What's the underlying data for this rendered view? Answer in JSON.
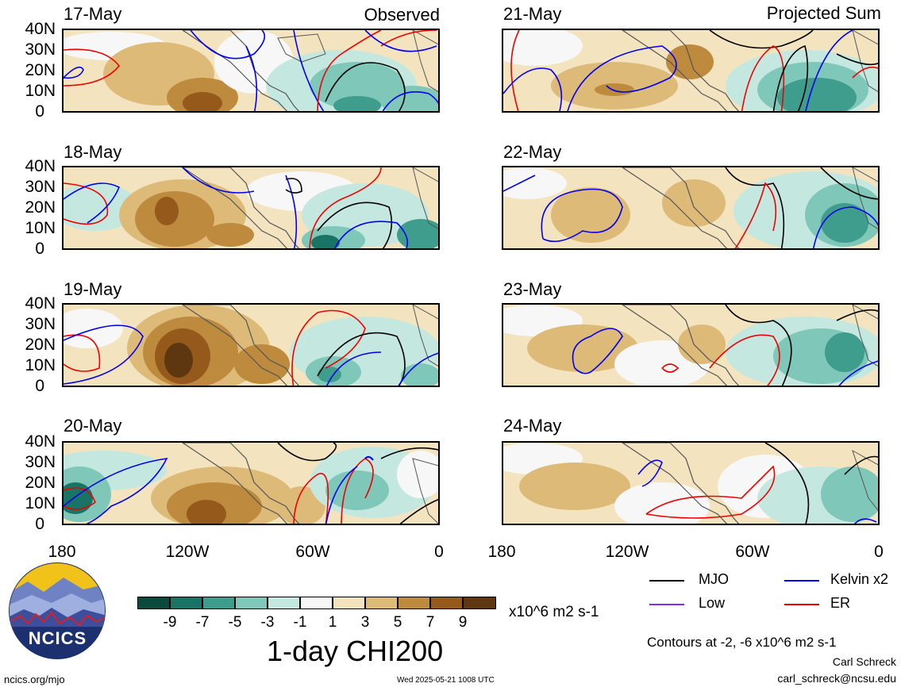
{
  "headers": {
    "left_label": "Observed",
    "right_label": "Projected Sum"
  },
  "panels": [
    {
      "date": "17-May",
      "column": "left",
      "row": 0
    },
    {
      "date": "18-May",
      "column": "left",
      "row": 1
    },
    {
      "date": "19-May",
      "column": "left",
      "row": 2
    },
    {
      "date": "20-May",
      "column": "left",
      "row": 3
    },
    {
      "date": "21-May",
      "column": "right",
      "row": 0
    },
    {
      "date": "22-May",
      "column": "right",
      "row": 1
    },
    {
      "date": "23-May",
      "column": "right",
      "row": 2
    },
    {
      "date": "24-May",
      "column": "right",
      "row": 3
    }
  ],
  "y_ticks": [
    "40N",
    "30N",
    "20N",
    "10N",
    "0"
  ],
  "x_ticks": [
    "180",
    "120W",
    "60W",
    "0"
  ],
  "colorbar": {
    "title": "1-day CHI200",
    "units": "x10^6 m2 s-1",
    "tick_labels": [
      "-9",
      "-7",
      "-5",
      "-3",
      "-1",
      "1",
      "3",
      "5",
      "7",
      "9"
    ],
    "colors": [
      "#0b4a3c",
      "#1a7466",
      "#3f9d8e",
      "#7fc7b9",
      "#c4e8df",
      "#f7f7f7",
      "#f3e4bf",
      "#deba79",
      "#bd8a3e",
      "#94591b",
      "#5e3710"
    ]
  },
  "legend": {
    "items": [
      {
        "label": "MJO",
        "color": "#000000"
      },
      {
        "label": "Kelvin x2",
        "color": "#0000ee"
      },
      {
        "label": "Low",
        "color": "#8a2be2"
      },
      {
        "label": "ER",
        "color": "#ee0000"
      }
    ],
    "contours_note": "Contours at -2, -6 x10^6 m2 s-1"
  },
  "footer": {
    "site": "ncics.org/mjo",
    "timestamp": "Wed 2025-05-21 1008 UTC",
    "author": "Carl Schreck",
    "email": "carl_schreck@ncsu.edu",
    "logo_text": "NCICS"
  }
}
